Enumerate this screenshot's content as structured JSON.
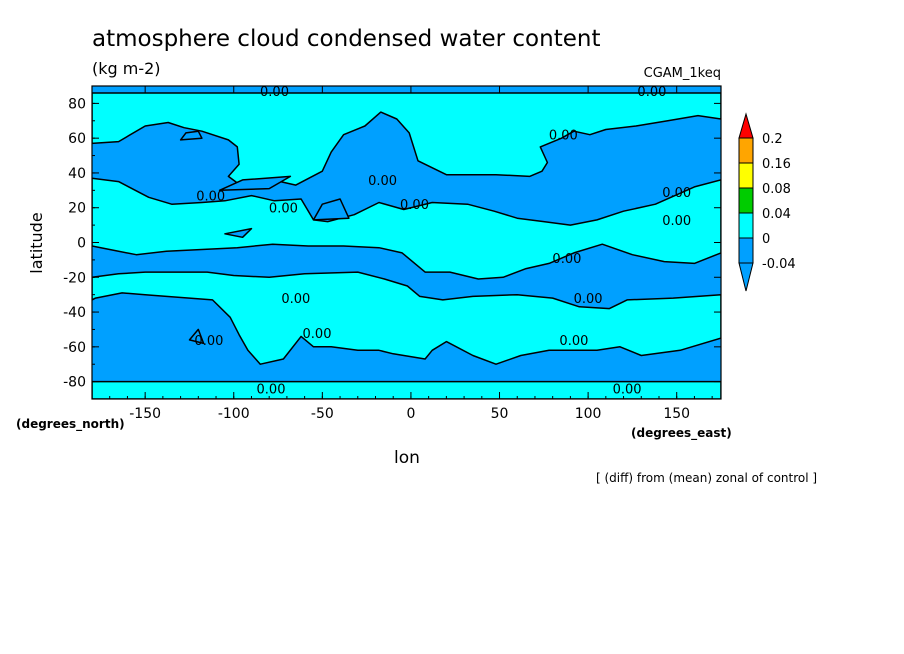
{
  "chart_data": {
    "type": "heatmap",
    "title": "atmosphere cloud condensed water content",
    "units": "(kg m-2)",
    "run_label": "CGAM_1keq",
    "xlabel": "lon",
    "ylabel": "latitude",
    "x_units_label": "(degrees_east)",
    "y_units_label": "(degrees_north)",
    "footnote": "[ (diff) from (mean) zonal of control ]",
    "xlim": [
      -180,
      175
    ],
    "ylim": [
      -90,
      90
    ],
    "x_ticks": [
      -150,
      -100,
      -50,
      0,
      50,
      100,
      150
    ],
    "x_tick_labels": [
      "-150",
      "-100",
      "-50",
      "0",
      "50",
      "100",
      "150"
    ],
    "y_ticks": [
      80,
      60,
      40,
      20,
      0,
      -20,
      -40,
      -60,
      -80
    ],
    "y_tick_labels": [
      "80",
      "60",
      "40",
      "20",
      "0",
      "-20",
      "-40",
      "-60",
      "-80"
    ],
    "colorbar": {
      "levels": [
        "0.2",
        "0.16",
        "0.08",
        "0.04",
        "0",
        "-0.04"
      ],
      "colors": [
        "#ff0000",
        "#ffa500",
        "#ffff00",
        "#00cc00",
        "#00ffff",
        "#00a0ff"
      ],
      "extend": "both"
    },
    "contour_level_label": "0.00",
    "contour_labels": [
      {
        "lon": -77,
        "lat": 87
      },
      {
        "lon": 136,
        "lat": 87
      },
      {
        "lon": 86,
        "lat": 62
      },
      {
        "lon": -16,
        "lat": 36
      },
      {
        "lon": -113,
        "lat": 27
      },
      {
        "lon": -72,
        "lat": 20
      },
      {
        "lon": 2,
        "lat": 22
      },
      {
        "lon": 150,
        "lat": 29
      },
      {
        "lon": 150,
        "lat": 13
      },
      {
        "lon": 88,
        "lat": -9
      },
      {
        "lon": 100,
        "lat": -32
      },
      {
        "lon": -65,
        "lat": -32
      },
      {
        "lon": -53,
        "lat": -52
      },
      {
        "lon": -114,
        "lat": -56
      },
      {
        "lon": 92,
        "lat": -56
      },
      {
        "lon": -79,
        "lat": -84
      },
      {
        "lon": 122,
        "lat": -84
      }
    ],
    "background_category": "-0.04",
    "regions": [
      {
        "category": "0",
        "polygon": [
          [
            -180,
            86
          ],
          [
            -180,
            57
          ],
          [
            -165,
            58
          ],
          [
            -150,
            67
          ],
          [
            -137,
            69
          ],
          [
            -128,
            66
          ],
          [
            -118,
            64
          ],
          [
            -103,
            59
          ],
          [
            -98,
            55
          ],
          [
            -97,
            45
          ],
          [
            -103,
            38
          ],
          [
            -95,
            32
          ],
          [
            -78,
            36
          ],
          [
            -65,
            33
          ],
          [
            -50,
            41
          ],
          [
            -45,
            52
          ],
          [
            -38,
            62
          ],
          [
            -26,
            67
          ],
          [
            -17,
            75
          ],
          [
            -8,
            71
          ],
          [
            -1,
            63
          ],
          [
            4,
            47
          ],
          [
            20,
            39
          ],
          [
            48,
            39
          ],
          [
            67,
            38
          ],
          [
            74,
            41
          ],
          [
            77,
            46
          ],
          [
            73,
            55
          ],
          [
            85,
            60
          ],
          [
            92,
            64
          ],
          [
            101,
            62
          ],
          [
            110,
            65
          ],
          [
            127,
            67
          ],
          [
            145,
            70
          ],
          [
            162,
            73
          ],
          [
            175,
            71
          ],
          [
            175,
            86
          ]
        ]
      },
      {
        "category": "0",
        "polygon": [
          [
            -180,
            37
          ],
          [
            -165,
            35
          ],
          [
            -148,
            26
          ],
          [
            -135,
            22
          ],
          [
            -118,
            23
          ],
          [
            -105,
            24
          ],
          [
            -90,
            27
          ],
          [
            -77,
            24
          ],
          [
            -62,
            25
          ],
          [
            -55,
            13
          ],
          [
            -47,
            12
          ],
          [
            -32,
            16
          ],
          [
            -18,
            23
          ],
          [
            -4,
            19
          ],
          [
            12,
            23
          ],
          [
            32,
            22
          ],
          [
            47,
            18
          ],
          [
            60,
            14
          ],
          [
            75,
            12
          ],
          [
            90,
            10
          ],
          [
            105,
            13
          ],
          [
            120,
            18
          ],
          [
            138,
            22
          ],
          [
            160,
            32
          ],
          [
            175,
            36
          ],
          [
            175,
            -6
          ],
          [
            160,
            -12
          ],
          [
            143,
            -11
          ],
          [
            125,
            -7
          ],
          [
            108,
            -1
          ],
          [
            92,
            -6
          ],
          [
            78,
            -12
          ],
          [
            65,
            -15
          ],
          [
            52,
            -20
          ],
          [
            38,
            -21
          ],
          [
            22,
            -17
          ],
          [
            8,
            -17
          ],
          [
            -5,
            -6
          ],
          [
            -18,
            -3
          ],
          [
            -38,
            -2
          ],
          [
            -58,
            -2
          ],
          [
            -78,
            -1
          ],
          [
            -98,
            -3
          ],
          [
            -118,
            -4
          ],
          [
            -138,
            -5
          ],
          [
            -155,
            -7
          ],
          [
            -170,
            -4
          ],
          [
            -180,
            -2
          ]
        ]
      },
      {
        "category": "0",
        "polygon": [
          [
            -80,
            -20
          ],
          [
            -60,
            -18
          ],
          [
            -30,
            -17
          ],
          [
            -15,
            -21
          ],
          [
            -2,
            -25
          ],
          [
            5,
            -31
          ],
          [
            18,
            -33
          ],
          [
            35,
            -31
          ],
          [
            60,
            -30
          ],
          [
            80,
            -32
          ],
          [
            95,
            -37
          ],
          [
            112,
            -38
          ],
          [
            122,
            -33
          ],
          [
            148,
            -32
          ],
          [
            175,
            -30
          ],
          [
            175,
            -55
          ],
          [
            152,
            -62
          ],
          [
            130,
            -65
          ],
          [
            118,
            -60
          ],
          [
            105,
            -62
          ],
          [
            92,
            -62
          ],
          [
            78,
            -62
          ],
          [
            62,
            -65
          ],
          [
            48,
            -70
          ],
          [
            35,
            -65
          ],
          [
            20,
            -57
          ],
          [
            12,
            -62
          ],
          [
            8,
            -67
          ],
          [
            -10,
            -64
          ],
          [
            -18,
            -62
          ],
          [
            -30,
            -62
          ],
          [
            -45,
            -60
          ],
          [
            -55,
            -60
          ],
          [
            -62,
            -54
          ],
          [
            -72,
            -67
          ],
          [
            -85,
            -70
          ],
          [
            -92,
            -62
          ],
          [
            -97,
            -53
          ],
          [
            -102,
            -43
          ],
          [
            -112,
            -33
          ],
          [
            -125,
            -32
          ],
          [
            -138,
            -31
          ],
          [
            -150,
            -30
          ],
          [
            -163,
            -29
          ],
          [
            -178,
            -32
          ],
          [
            -180,
            -33
          ],
          [
            -180,
            -20
          ],
          [
            -165,
            -18
          ],
          [
            -150,
            -17
          ],
          [
            -135,
            -17
          ],
          [
            -115,
            -17
          ],
          [
            -100,
            -19
          ]
        ]
      },
      {
        "category": "0",
        "polygon": [
          [
            -180,
            -80
          ],
          [
            -180,
            -90
          ],
          [
            175,
            -90
          ],
          [
            175,
            -80
          ],
          [
            80,
            -80
          ],
          [
            0,
            -80
          ],
          [
            -100,
            -80
          ]
        ]
      }
    ],
    "blue_islands": [
      {
        "category": "-0.04",
        "polygon": [
          [
            -120,
            64
          ],
          [
            -118,
            60
          ],
          [
            -130,
            59
          ],
          [
            -127,
            63
          ]
        ]
      },
      {
        "category": "-0.04",
        "polygon": [
          [
            -68,
            38
          ],
          [
            -80,
            31
          ],
          [
            -108,
            30
          ],
          [
            -95,
            36
          ]
        ]
      },
      {
        "category": "-0.04",
        "polygon": [
          [
            -40,
            25
          ],
          [
            -35,
            14
          ],
          [
            -55,
            13
          ],
          [
            -50,
            22
          ]
        ]
      },
      {
        "category": "-0.04",
        "polygon": [
          [
            -90,
            8
          ],
          [
            -95,
            3
          ],
          [
            -105,
            5
          ]
        ]
      },
      {
        "category": "-0.04",
        "polygon": [
          [
            -120,
            -50
          ],
          [
            -117,
            -58
          ],
          [
            -125,
            -56
          ]
        ]
      }
    ]
  }
}
